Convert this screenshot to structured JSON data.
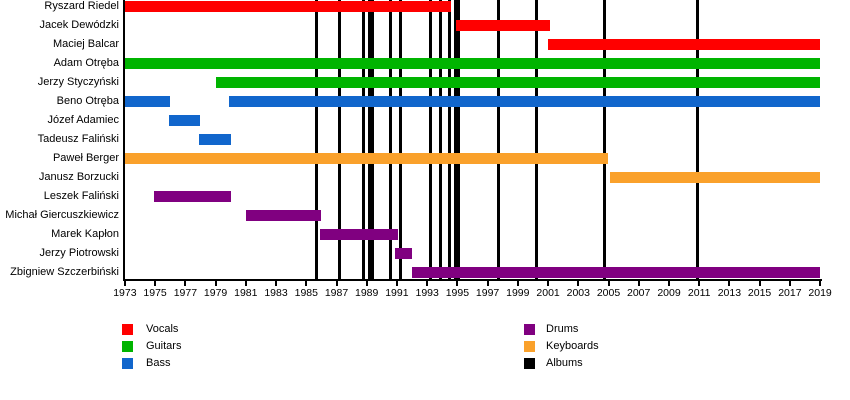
{
  "chart_data": {
    "type": "timeline",
    "title": "",
    "x_axis": {
      "start": 1973,
      "end": 2019,
      "tick_step": 2,
      "tick_labels": [
        "1973",
        "1975",
        "1977",
        "1979",
        "1981",
        "1983",
        "1985",
        "1987",
        "1989",
        "1991",
        "1993",
        "1995",
        "1997",
        "1999",
        "2001",
        "2003",
        "2005",
        "2007",
        "2009",
        "2011",
        "2013",
        "2015",
        "2017",
        "2019"
      ]
    },
    "colors": {
      "Vocals": "#FF0000",
      "Guitars": "#00B400",
      "Bass": "#1166CC",
      "Drums": "#800080",
      "Keyboards": "#FAA12B",
      "Albums": "#000000"
    },
    "members": [
      {
        "name": "Ryszard Riedel",
        "role": "Vocals",
        "segments": [
          [
            1973,
            1994.6
          ]
        ]
      },
      {
        "name": "Jacek Dewódzki",
        "role": "Vocals",
        "segments": [
          [
            1994.9,
            2001.1
          ]
        ]
      },
      {
        "name": "Maciej Balcar",
        "role": "Vocals",
        "segments": [
          [
            2001,
            2019
          ]
        ]
      },
      {
        "name": "Adam Otręba",
        "role": "Guitars",
        "segments": [
          [
            1973,
            2019
          ]
        ]
      },
      {
        "name": "Jerzy Styczyński",
        "role": "Guitars",
        "segments": [
          [
            1979,
            2019
          ]
        ]
      },
      {
        "name": "Beno Otręba",
        "role": "Bass",
        "segments": [
          [
            1973,
            1976
          ],
          [
            1979.9,
            2019
          ]
        ]
      },
      {
        "name": "Józef Adamiec",
        "role": "Bass",
        "segments": [
          [
            1975.9,
            1978
          ]
        ]
      },
      {
        "name": "Tadeusz Faliński",
        "role": "Bass",
        "segments": [
          [
            1977.9,
            1980
          ]
        ]
      },
      {
        "name": "Paweł Berger",
        "role": "Keyboards",
        "segments": [
          [
            1973,
            2005
          ]
        ]
      },
      {
        "name": "Janusz Borzucki",
        "role": "Keyboards",
        "segments": [
          [
            2005.1,
            2019
          ]
        ]
      },
      {
        "name": "Leszek Faliński",
        "role": "Drums",
        "segments": [
          [
            1974.9,
            1980
          ]
        ]
      },
      {
        "name": "Michał Giercuszkiewicz",
        "role": "Drums",
        "segments": [
          [
            1981,
            1986
          ]
        ]
      },
      {
        "name": "Marek Kapłon",
        "role": "Drums",
        "segments": [
          [
            1985.9,
            1991.1
          ]
        ]
      },
      {
        "name": "Jerzy Piotrowski",
        "role": "Drums",
        "segments": [
          [
            1990.9,
            1992
          ]
        ]
      },
      {
        "name": "Zbigniew Szczerbiński",
        "role": "Drums",
        "segments": [
          [
            1992,
            2019
          ]
        ]
      }
    ],
    "albums_years": [
      1985.7,
      1987.2,
      1988.8,
      1989.2,
      1989.4,
      1990.6,
      1991.2,
      1993.2,
      1993.9,
      1994.5,
      1994.9,
      1995.1,
      1997.7,
      2000.2,
      2004.7,
      2010.9
    ],
    "legend": {
      "position": "bottom",
      "columns": [
        {
          "items": [
            {
              "label": "Vocals",
              "color": "#FF0000"
            },
            {
              "label": "Guitars",
              "color": "#00B400"
            },
            {
              "label": "Bass",
              "color": "#1166CC"
            }
          ]
        },
        {
          "items": [
            {
              "label": "Drums",
              "color": "#800080"
            },
            {
              "label": "Keyboards",
              "color": "#FAA12B"
            },
            {
              "label": "Albums",
              "color": "#000000"
            }
          ]
        }
      ]
    }
  }
}
